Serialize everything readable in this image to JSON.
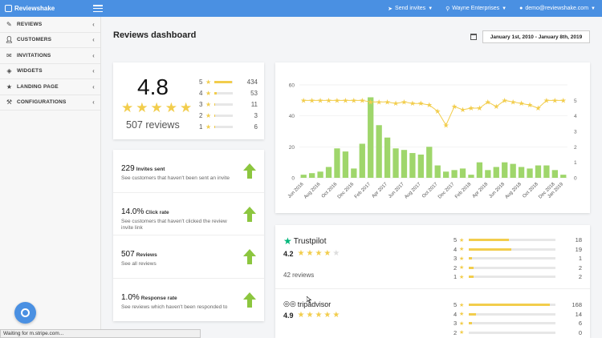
{
  "brand": {
    "name": "Reviewshake"
  },
  "topnav": {
    "send_invites": "Send invites",
    "company": "Wayne Enterprises",
    "user": "demo@reviewshake.com"
  },
  "sidebar": {
    "items": [
      {
        "label": "REVIEWS",
        "icon": "pencil-icon"
      },
      {
        "label": "CUSTOMERS",
        "icon": "user-icon"
      },
      {
        "label": "INVITATIONS",
        "icon": "envelope-icon"
      },
      {
        "label": "WIDGETS",
        "icon": "puzzle-icon"
      },
      {
        "label": "LANDING PAGE",
        "icon": "star-icon"
      },
      {
        "label": "CONFIGURATIONS",
        "icon": "wrench-icon"
      }
    ]
  },
  "page": {
    "title": "Reviews dashboard",
    "date_range": "January 1st, 2010 - January 8th, 2019"
  },
  "rating": {
    "score": "4.8",
    "count_text": "507 reviews",
    "distribution": [
      {
        "stars": "5",
        "count": "434",
        "fraction": 0.93
      },
      {
        "stars": "4",
        "count": "53",
        "fraction": 0.12
      },
      {
        "stars": "3",
        "count": "11",
        "fraction": 0.03
      },
      {
        "stars": "2",
        "count": "3",
        "fraction": 0.01
      },
      {
        "stars": "1",
        "count": "6",
        "fraction": 0.02
      }
    ]
  },
  "stats": [
    {
      "value": "229",
      "label": "Invites sent",
      "desc": "See customers that haven't been sent an invite"
    },
    {
      "value": "14.0%",
      "label": "Click rate",
      "desc": "See customers that haven't clicked the review invite link"
    },
    {
      "value": "507",
      "label": "Reviews",
      "desc": "See all reviews"
    },
    {
      "value": "1.0%",
      "label": "Response rate",
      "desc": "See reviews which haven't been responded to"
    }
  ],
  "chart_data": {
    "type": "bar",
    "categories": [
      "Jun 2016",
      "Jul 2016",
      "Aug 2016",
      "Sep 2016",
      "Oct 2016",
      "Nov 2016",
      "Dec 2016",
      "Jan 2017",
      "Feb 2017",
      "Mar 2017",
      "Apr 2017",
      "May 2017",
      "Jun 2017",
      "Jul 2017",
      "Aug 2017",
      "Sep 2017",
      "Oct 2017",
      "Nov 2017",
      "Dec 2017",
      "Jan 2018",
      "Feb 2018",
      "Mar 2018",
      "Apr 2018",
      "May 2018",
      "Jun 2018",
      "Jul 2018",
      "Aug 2018",
      "Sep 2018",
      "Oct 2018",
      "Nov 2018",
      "Dec 2018",
      "Jan 2019"
    ],
    "x_tick_labels": [
      "Jun 2016",
      "Aug 2016",
      "Oct 2016",
      "Dec 2016",
      "Feb 2017",
      "Apr 2017",
      "Jun 2017",
      "Aug 2017",
      "Oct 2017",
      "Dec 2017",
      "Feb 2018",
      "Apr 2018",
      "Jun 2018",
      "Aug 2018",
      "Oct 2018",
      "Dec 2018"
    ],
    "extra_tick_label": "Jan 2019",
    "series": [
      {
        "kind": "bar",
        "axis": "left",
        "values": [
          2,
          3,
          4,
          7,
          19,
          17,
          6,
          22,
          52,
          34,
          26,
          19,
          18,
          16,
          15,
          20,
          8,
          4,
          5,
          6,
          2,
          10,
          5,
          7,
          10,
          9,
          7,
          6,
          8,
          8,
          5,
          2
        ]
      },
      {
        "kind": "line",
        "axis": "right",
        "values": [
          5.0,
          5.0,
          5.0,
          5.0,
          5.0,
          5.0,
          5.0,
          5.0,
          4.9,
          4.9,
          4.9,
          4.8,
          4.9,
          4.8,
          4.8,
          4.7,
          4.3,
          3.4,
          4.6,
          4.4,
          4.5,
          4.5,
          4.9,
          4.6,
          5.0,
          4.9,
          4.8,
          4.7,
          4.5,
          5.0,
          5.0,
          5.0
        ]
      }
    ],
    "left_axis": {
      "ylim": [
        0,
        60
      ],
      "ticks": [
        "0",
        "20",
        "40",
        "60"
      ]
    },
    "right_axis": {
      "ylim": [
        0,
        6
      ],
      "ticks": [
        "0",
        "1",
        "2",
        "3",
        "4",
        "5"
      ]
    },
    "colors": {
      "bar": "#9fd66b",
      "line": "#f2cd4c"
    }
  },
  "providers": [
    {
      "name": "Trustpilot",
      "icon": "trustpilot-star-icon",
      "score": "4.2",
      "stars_filled": 4,
      "reviews": "42 reviews",
      "distribution": [
        {
          "stars": "5",
          "count": "18",
          "fraction": 0.46
        },
        {
          "stars": "4",
          "count": "19",
          "fraction": 0.49
        },
        {
          "stars": "3",
          "count": "1",
          "fraction": 0.03
        },
        {
          "stars": "2",
          "count": "2",
          "fraction": 0.05
        },
        {
          "stars": "1",
          "count": "2",
          "fraction": 0.05
        }
      ]
    },
    {
      "name": "tripadvisor",
      "icon": "tripadvisor-owl-icon",
      "score": "4.9",
      "stars_filled": 5,
      "distribution": [
        {
          "stars": "5",
          "count": "168",
          "fraction": 0.93
        },
        {
          "stars": "4",
          "count": "14",
          "fraction": 0.08
        },
        {
          "stars": "3",
          "count": "6",
          "fraction": 0.03
        },
        {
          "stars": "2",
          "count": "0",
          "fraction": 0.0
        }
      ]
    }
  ],
  "status_bar": "Waiting for m.stripe.com...",
  "colors": {
    "topbar": "#4a90e2",
    "star": "#f2cd4c",
    "arrow": "#8cc63f",
    "trustpilot": "#00b67a"
  }
}
